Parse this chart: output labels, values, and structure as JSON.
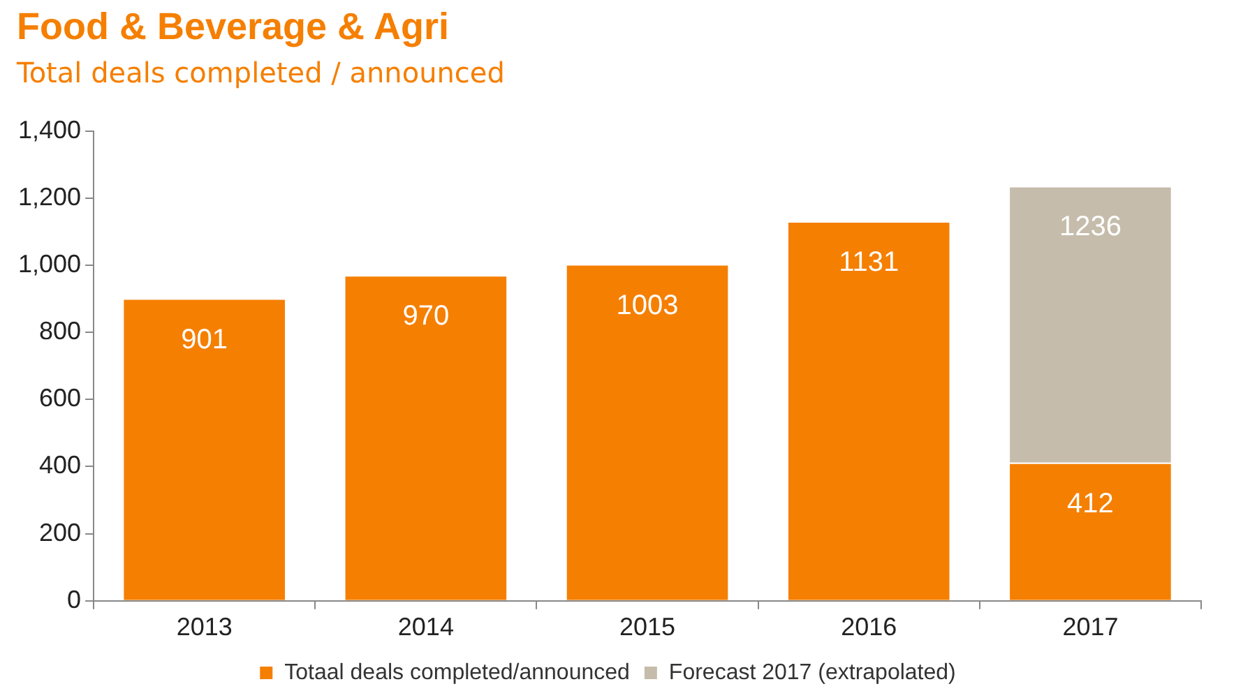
{
  "chart_data": {
    "type": "bar",
    "title": "Food & Beverage & Agri",
    "subtitle": "Total deals completed / announced",
    "categories": [
      "2013",
      "2014",
      "2015",
      "2016",
      "2017"
    ],
    "series": [
      {
        "name": "Totaal deals completed/announced",
        "color": "#f57f00",
        "values": [
          901,
          970,
          1003,
          1131,
          412
        ],
        "value_labels": [
          "901",
          "970",
          "1003",
          "1131",
          "412"
        ]
      },
      {
        "name": "Forecast 2017 (extrapolated)",
        "color": "#c5bcab",
        "values": [
          null,
          null,
          null,
          null,
          824
        ]
      }
    ],
    "totals": [
      null,
      null,
      null,
      null,
      "1236"
    ],
    "stacked": true,
    "ylim": [
      0,
      1400
    ],
    "yticks": [
      0,
      200,
      400,
      600,
      800,
      {
        "value": 1000,
        "label": "1,000"
      },
      {
        "value": 1200,
        "label": "1,200"
      },
      {
        "value": 1400,
        "label": "1,400"
      }
    ],
    "grid": false,
    "legend": "bottom"
  }
}
